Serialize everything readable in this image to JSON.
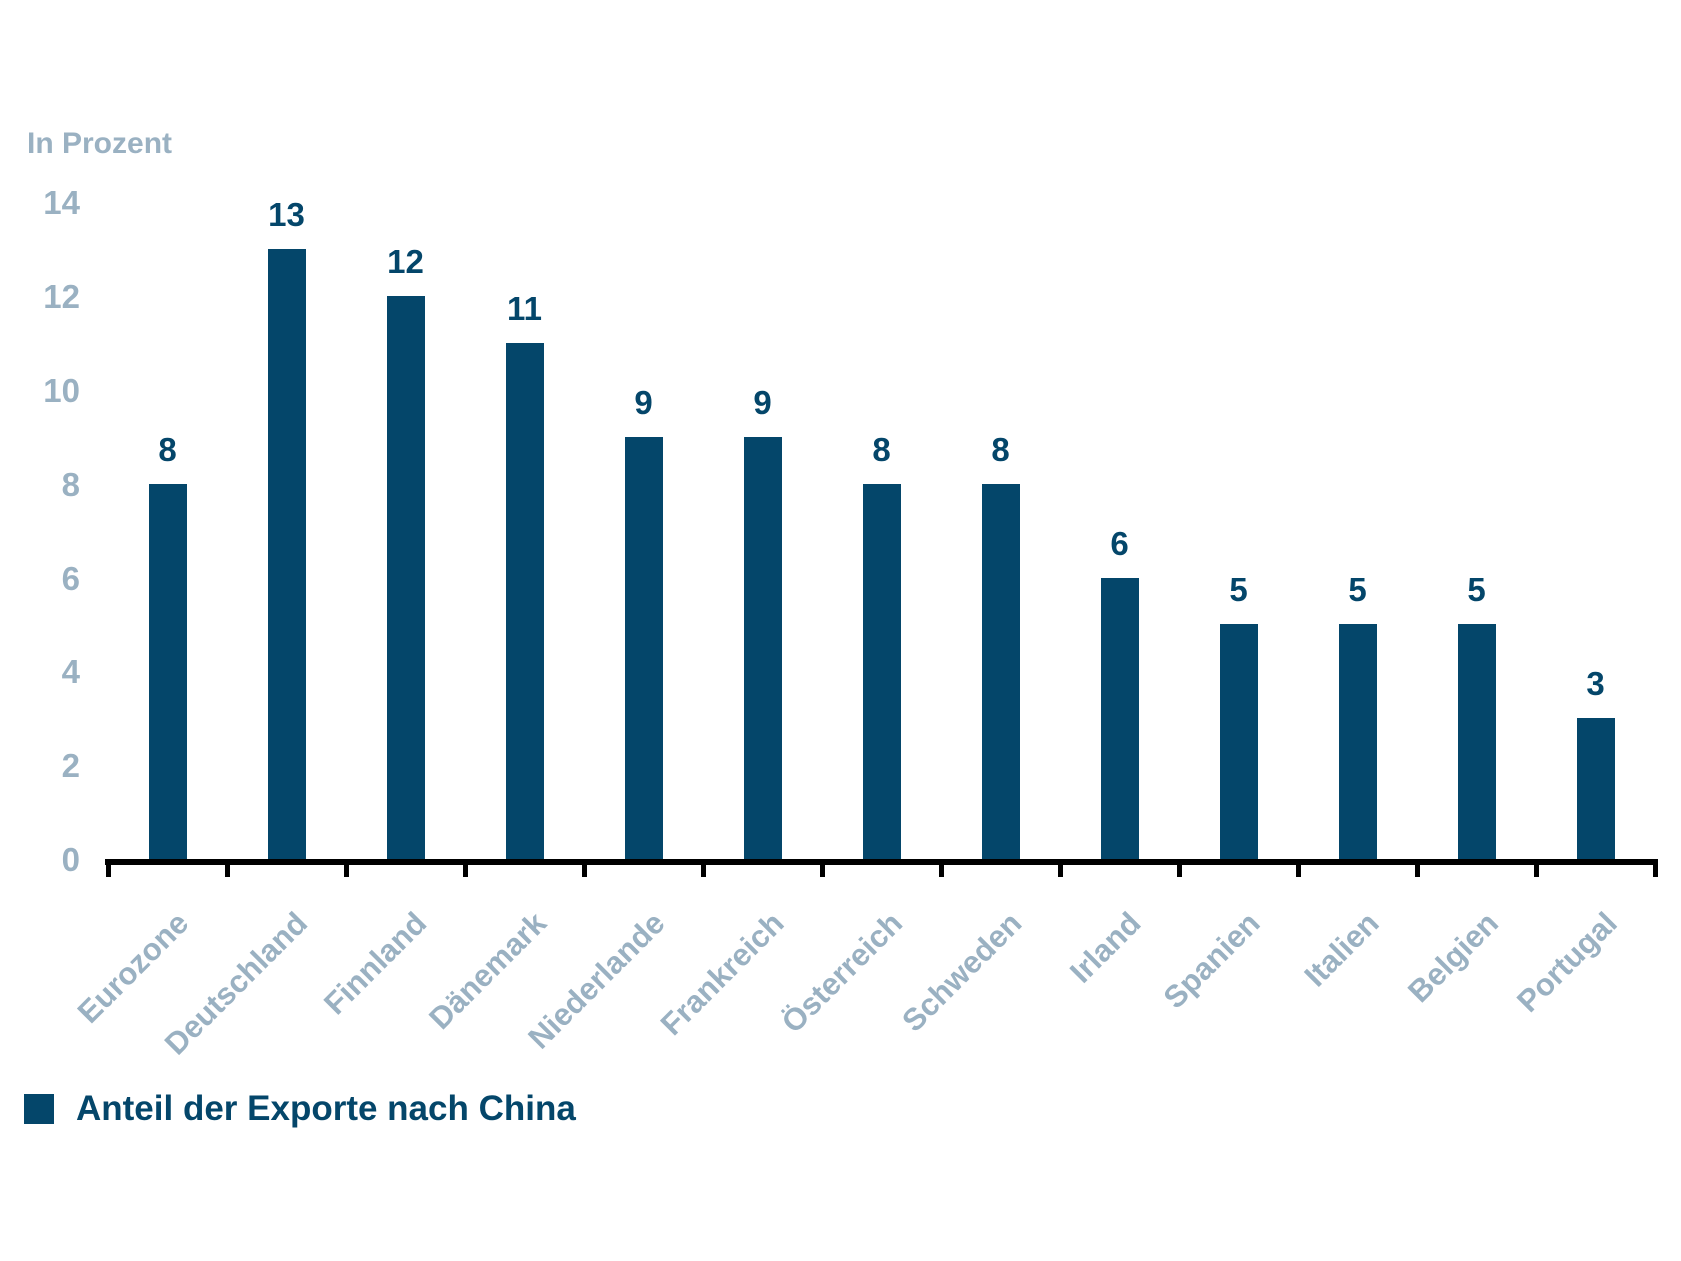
{
  "chart_data": {
    "type": "bar",
    "title": "",
    "unit_label": "In Prozent",
    "xlabel": "",
    "ylabel": "In Prozent",
    "categories": [
      "Eurozone",
      "Deutschland",
      "Finnland",
      "Dänemark",
      "Niederlande",
      "Frankreich",
      "Österreich",
      "Schweden",
      "Irland",
      "Spanien",
      "Italien",
      "Belgien",
      "Portugal"
    ],
    "values": [
      8,
      13,
      12,
      11,
      9,
      9,
      8,
      8,
      6,
      5,
      5,
      5,
      3
    ],
    "value_labels": [
      "8",
      "13",
      "12",
      "11",
      "9",
      "9",
      "8",
      "8",
      "6",
      "5",
      "5",
      "5",
      "3"
    ],
    "ylim": [
      0,
      14
    ],
    "y_ticks": [
      0,
      2,
      4,
      6,
      8,
      10,
      12,
      14
    ],
    "grid": false,
    "legend": {
      "label": "Anteil der Exporte nach China",
      "position": "bottom-left"
    },
    "colors": {
      "bar": "#04466a",
      "value_label": "#04466a",
      "axis_text": "#9ab1c2",
      "axis_line": "#000000",
      "background": "#ffffff"
    }
  }
}
